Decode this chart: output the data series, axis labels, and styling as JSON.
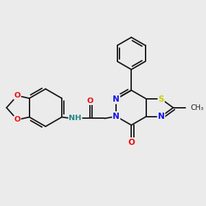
{
  "background_color": "#ebebeb",
  "bond_color": "#1a1a1a",
  "atom_colors": {
    "N": "#1010ee",
    "O": "#ee1010",
    "S": "#cccc00",
    "C": "#1a1a1a",
    "H": "#208888"
  },
  "figsize": [
    3.0,
    3.0
  ],
  "dpi": 100
}
